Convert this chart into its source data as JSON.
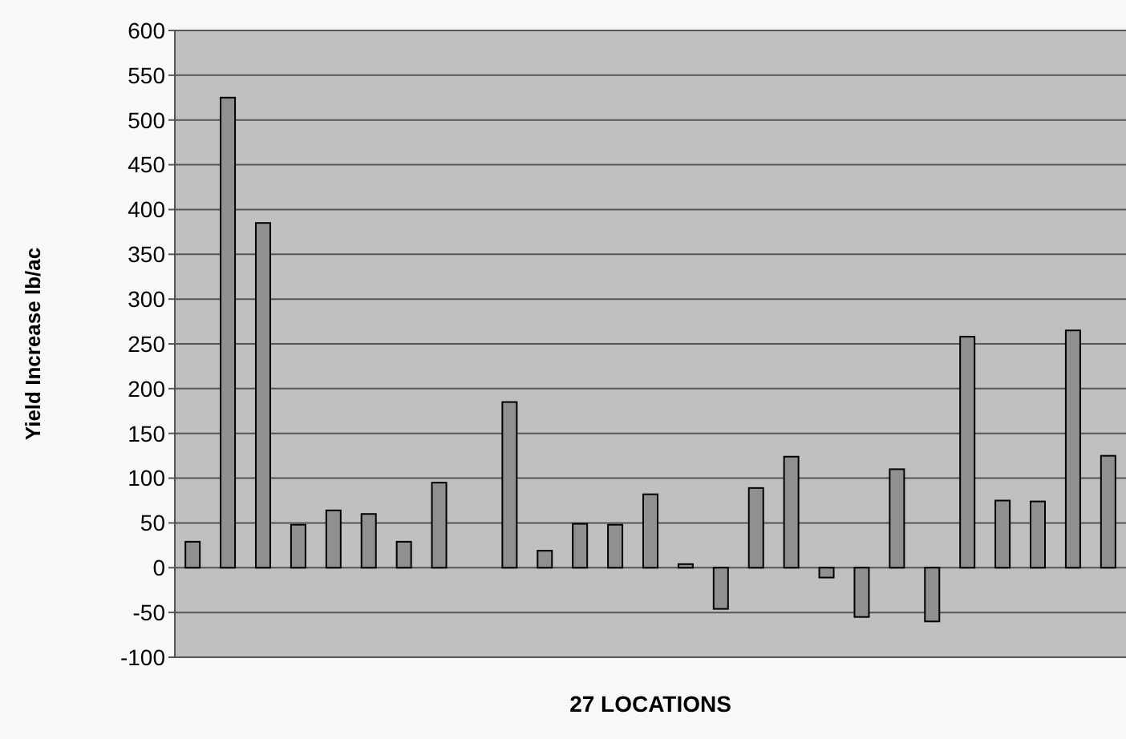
{
  "chart_data": {
    "type": "bar",
    "xlabel": "27 LOCATIONS",
    "ylabel": "Yield Increase lb/ac",
    "categories": [
      null,
      null,
      null,
      null,
      null,
      null,
      null,
      null,
      null,
      null,
      null,
      null,
      null,
      null,
      null,
      null,
      null,
      null,
      null,
      null,
      null,
      null,
      null,
      null,
      null,
      null,
      null
    ],
    "values": [
      29,
      525,
      385,
      48,
      64,
      60,
      29,
      95,
      0,
      185,
      19,
      49,
      48,
      82,
      4,
      -46,
      89,
      124,
      -11,
      -55,
      110,
      -60,
      258,
      75,
      74,
      265,
      125
    ],
    "color": "#909090",
    "ylim": [
      -100,
      600
    ],
    "yticks": [
      -100,
      -50,
      0,
      50,
      100,
      150,
      200,
      250,
      300,
      350,
      400,
      450,
      500,
      550,
      600
    ],
    "grid": "y"
  }
}
